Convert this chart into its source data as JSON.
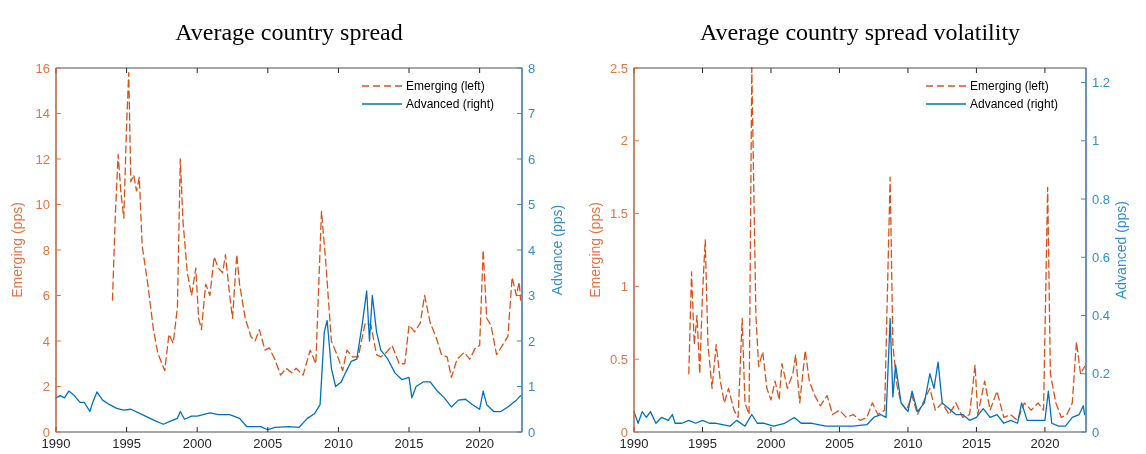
{
  "chart_data": [
    {
      "type": "line",
      "title": "Average country spread",
      "ylabel": "Emerging (pps)",
      "y2label": "Advance (pps)",
      "xlim": [
        1990,
        2023
      ],
      "xticks": [
        1990,
        1995,
        2000,
        2005,
        2010,
        2015,
        2020
      ],
      "ylim": [
        0,
        16
      ],
      "yticks": [
        0,
        2,
        4,
        6,
        8,
        10,
        12,
        14,
        16
      ],
      "y2lim": [
        0,
        8
      ],
      "y2ticks": [
        0,
        1,
        2,
        3,
        4,
        5,
        6,
        7,
        8
      ],
      "legend": "top right",
      "grid": false,
      "series": [
        {
          "name": "Emerging (left)",
          "color": "#d95319",
          "line_style": "dashed",
          "axis": "y",
          "x": [
            1994.0,
            1994.2,
            1994.4,
            1994.6,
            1994.8,
            1995.0,
            1995.15,
            1995.3,
            1995.5,
            1995.7,
            1995.9,
            1996.1,
            1996.5,
            1996.9,
            1997.2,
            1997.5,
            1997.7,
            1998.0,
            1998.3,
            1998.6,
            1998.8,
            1999.0,
            1999.3,
            1999.6,
            1999.9,
            2000.1,
            2000.3,
            2000.6,
            2000.9,
            2001.2,
            2001.5,
            2001.8,
            2002.0,
            2002.3,
            2002.5,
            2002.8,
            2003.0,
            2003.4,
            2003.8,
            2004.1,
            2004.4,
            2004.8,
            2005.1,
            2005.5,
            2005.9,
            2006.3,
            2006.7,
            2007.0,
            2007.5,
            2008.0,
            2008.4,
            2008.8,
            2009.1,
            2009.5,
            2009.9,
            2010.3,
            2010.6,
            2011.0,
            2011.4,
            2011.9,
            2012.3,
            2012.7,
            2013.0,
            2013.4,
            2013.8,
            2014.3,
            2014.7,
            2015.0,
            2015.4,
            2015.8,
            2016.1,
            2016.5,
            2016.9,
            2017.3,
            2017.7,
            2018.0,
            2018.4,
            2018.9,
            2019.3,
            2019.7,
            2020.0,
            2020.25,
            2020.5,
            2020.8,
            2021.2,
            2021.6,
            2022.0,
            2022.3,
            2022.6,
            2022.8,
            2022.9
          ],
          "values": [
            5.8,
            9.5,
            12.2,
            10.5,
            9.4,
            13.5,
            15.8,
            11.0,
            11.3,
            10.6,
            11.2,
            8.2,
            6.5,
            4.5,
            3.5,
            3.0,
            2.7,
            4.3,
            3.9,
            5.5,
            12.0,
            9.2,
            7.0,
            6.0,
            7.2,
            5.0,
            4.5,
            6.5,
            6.0,
            7.7,
            7.2,
            7.0,
            7.8,
            6.0,
            5.0,
            7.8,
            6.5,
            5.0,
            4.2,
            4.0,
            4.5,
            3.6,
            3.7,
            3.2,
            2.5,
            2.8,
            2.6,
            2.8,
            2.5,
            3.6,
            3.0,
            9.7,
            7.5,
            4.0,
            3.4,
            2.7,
            3.6,
            3.3,
            3.3,
            4.8,
            4.7,
            3.4,
            3.3,
            3.5,
            3.8,
            3.0,
            3.0,
            4.7,
            4.4,
            4.8,
            6.0,
            4.8,
            4.2,
            3.4,
            3.3,
            2.4,
            3.2,
            3.5,
            3.2,
            3.7,
            3.8,
            8.0,
            5.0,
            4.7,
            3.4,
            3.8,
            4.2,
            6.8,
            6.0,
            6.6,
            5.8
          ]
        },
        {
          "name": "Advanced (right)",
          "color": "#0072bd",
          "line_style": "solid",
          "axis": "y2",
          "x": [
            1990,
            1990.3,
            1990.6,
            1990.9,
            1991.3,
            1991.7,
            1992.0,
            1992.4,
            1992.6,
            1992.9,
            1993.3,
            1993.8,
            1994.3,
            1994.8,
            1995.3,
            1996,
            1997,
            1997.6,
            1998.2,
            1998.6,
            1998.8,
            1999.1,
            1999.6,
            2000,
            2000.9,
            2001.5,
            2002.3,
            2003,
            2003.5,
            2004.5,
            2005,
            2005.5,
            2006.5,
            2007.2,
            2007.8,
            2008.3,
            2008.7,
            2009.0,
            2009.2,
            2009.5,
            2009.8,
            2010.2,
            2010.5,
            2010.9,
            2011.3,
            2011.7,
            2012.0,
            2012.2,
            2012.4,
            2012.7,
            2013.0,
            2013.5,
            2014,
            2014.5,
            2015,
            2015.2,
            2015.5,
            2016,
            2016.5,
            2017,
            2017.5,
            2018,
            2018.5,
            2019,
            2019.5,
            2020,
            2020.25,
            2020.5,
            2021,
            2021.5,
            2022,
            2022.6,
            2022.9
          ],
          "values": [
            0.75,
            0.8,
            0.75,
            0.9,
            0.8,
            0.65,
            0.65,
            0.45,
            0.65,
            0.88,
            0.7,
            0.6,
            0.52,
            0.48,
            0.5,
            0.4,
            0.25,
            0.17,
            0.25,
            0.3,
            0.45,
            0.28,
            0.35,
            0.35,
            0.42,
            0.38,
            0.38,
            0.3,
            0.12,
            0.12,
            0.05,
            0.1,
            0.12,
            0.1,
            0.3,
            0.4,
            0.6,
            2.2,
            2.45,
            1.4,
            1.0,
            1.1,
            1.3,
            1.55,
            1.6,
            2.4,
            3.1,
            2.0,
            3.0,
            2.2,
            1.8,
            1.6,
            1.3,
            1.15,
            1.2,
            0.75,
            1.0,
            1.1,
            1.1,
            0.9,
            0.75,
            0.55,
            0.7,
            0.72,
            0.6,
            0.5,
            0.9,
            0.6,
            0.45,
            0.45,
            0.55,
            0.7,
            0.8
          ]
        }
      ]
    },
    {
      "type": "line",
      "title": "Average country spread volatility",
      "ylabel": "Emerging (pps)",
      "y2label": "Advanced (pps)",
      "xlim": [
        1990,
        2023
      ],
      "xticks": [
        1990,
        1995,
        2000,
        2005,
        2010,
        2015,
        2020
      ],
      "ylim": [
        0,
        2.5
      ],
      "yticks": [
        0,
        0.5,
        1,
        1.5,
        2,
        2.5
      ],
      "y2lim": [
        0,
        1.25
      ],
      "y2ticks": [
        0,
        0.2,
        0.4,
        0.6,
        0.8,
        1,
        1.2
      ],
      "legend": "top right",
      "grid": false,
      "series": [
        {
          "name": "Emerging (left)",
          "color": "#d95319",
          "line_style": "dashed",
          "axis": "y",
          "x": [
            1994.0,
            1994.2,
            1994.4,
            1994.6,
            1994.8,
            1995.0,
            1995.2,
            1995.4,
            1995.7,
            1996,
            1996.3,
            1996.6,
            1996.9,
            1997.3,
            1997.6,
            1997.9,
            1998.1,
            1998.4,
            1998.6,
            1998.9,
            1999.1,
            1999.4,
            1999.7,
            2000.0,
            2000.3,
            2000.6,
            2000.8,
            2001.2,
            2001.6,
            2001.8,
            2002.1,
            2002.5,
            2002.8,
            2003.2,
            2003.6,
            2004.1,
            2004.5,
            2005,
            2005.5,
            2006,
            2006.5,
            2007,
            2007.4,
            2007.8,
            2008.3,
            2008.7,
            2008.9,
            2009.2,
            2009.5,
            2009.9,
            2010.3,
            2010.7,
            2011.1,
            2011.6,
            2012,
            2012.5,
            2013,
            2013.5,
            2014,
            2014.5,
            2014.9,
            2015.1,
            2015.6,
            2016,
            2016.5,
            2017,
            2017.5,
            2018,
            2018.5,
            2019,
            2019.5,
            2019.9,
            2020.2,
            2020.4,
            2020.8,
            2021.2,
            2021.6,
            2022.0,
            2022.3,
            2022.6,
            2022.9
          ],
          "values": [
            0.4,
            1.1,
            0.6,
            0.8,
            0.4,
            0.95,
            1.32,
            0.6,
            0.3,
            0.6,
            0.35,
            0.2,
            0.3,
            0.15,
            0.1,
            0.78,
            0.2,
            0.12,
            2.5,
            0.8,
            0.45,
            0.55,
            0.3,
            0.22,
            0.35,
            0.22,
            0.47,
            0.3,
            0.4,
            0.53,
            0.2,
            0.56,
            0.35,
            0.25,
            0.18,
            0.25,
            0.12,
            0.15,
            0.1,
            0.12,
            0.08,
            0.1,
            0.2,
            0.12,
            0.15,
            1.75,
            0.6,
            0.32,
            0.2,
            0.15,
            0.25,
            0.12,
            0.2,
            0.3,
            0.15,
            0.2,
            0.12,
            0.2,
            0.1,
            0.12,
            0.46,
            0.12,
            0.35,
            0.15,
            0.28,
            0.1,
            0.12,
            0.08,
            0.2,
            0.15,
            0.2,
            0.15,
            1.68,
            0.4,
            0.2,
            0.1,
            0.12,
            0.2,
            0.62,
            0.4,
            0.45
          ]
        },
        {
          "name": "Advanced (right)",
          "color": "#0072bd",
          "line_style": "solid",
          "axis": "y2",
          "x": [
            1990,
            1990.3,
            1990.6,
            1990.9,
            1991.2,
            1991.6,
            1992,
            1992.5,
            1992.8,
            1993,
            1993.5,
            1994,
            1994.5,
            1995,
            1995.5,
            1996,
            1997,
            1997.5,
            1998.1,
            1998.6,
            1999,
            1999.5,
            2000.2,
            2001,
            2001.7,
            2002.2,
            2003,
            2004,
            2005,
            2006,
            2007,
            2007.5,
            2008,
            2008.4,
            2008.7,
            2008.9,
            2009.1,
            2009.5,
            2010,
            2010.3,
            2010.7,
            2011.2,
            2011.6,
            2011.9,
            2012.2,
            2012.5,
            2013,
            2013.5,
            2014,
            2014.5,
            2015,
            2015.5,
            2016,
            2016.5,
            2017,
            2017.5,
            2018,
            2018.3,
            2018.7,
            2019.3,
            2020,
            2020.25,
            2020.5,
            2021,
            2021.5,
            2022,
            2022.5,
            2022.8,
            2022.9
          ],
          "values": [
            0.07,
            0.03,
            0.07,
            0.05,
            0.07,
            0.03,
            0.05,
            0.04,
            0.06,
            0.03,
            0.03,
            0.04,
            0.03,
            0.04,
            0.03,
            0.03,
            0.02,
            0.04,
            0.02,
            0.06,
            0.03,
            0.03,
            0.02,
            0.03,
            0.05,
            0.03,
            0.03,
            0.02,
            0.02,
            0.02,
            0.025,
            0.05,
            0.06,
            0.05,
            0.39,
            0.12,
            0.23,
            0.1,
            0.07,
            0.14,
            0.07,
            0.1,
            0.2,
            0.15,
            0.24,
            0.1,
            0.08,
            0.06,
            0.06,
            0.04,
            0.05,
            0.08,
            0.05,
            0.06,
            0.03,
            0.04,
            0.03,
            0.1,
            0.04,
            0.04,
            0.04,
            0.14,
            0.03,
            0.02,
            0.02,
            0.05,
            0.06,
            0.09,
            0.06
          ]
        }
      ]
    }
  ]
}
